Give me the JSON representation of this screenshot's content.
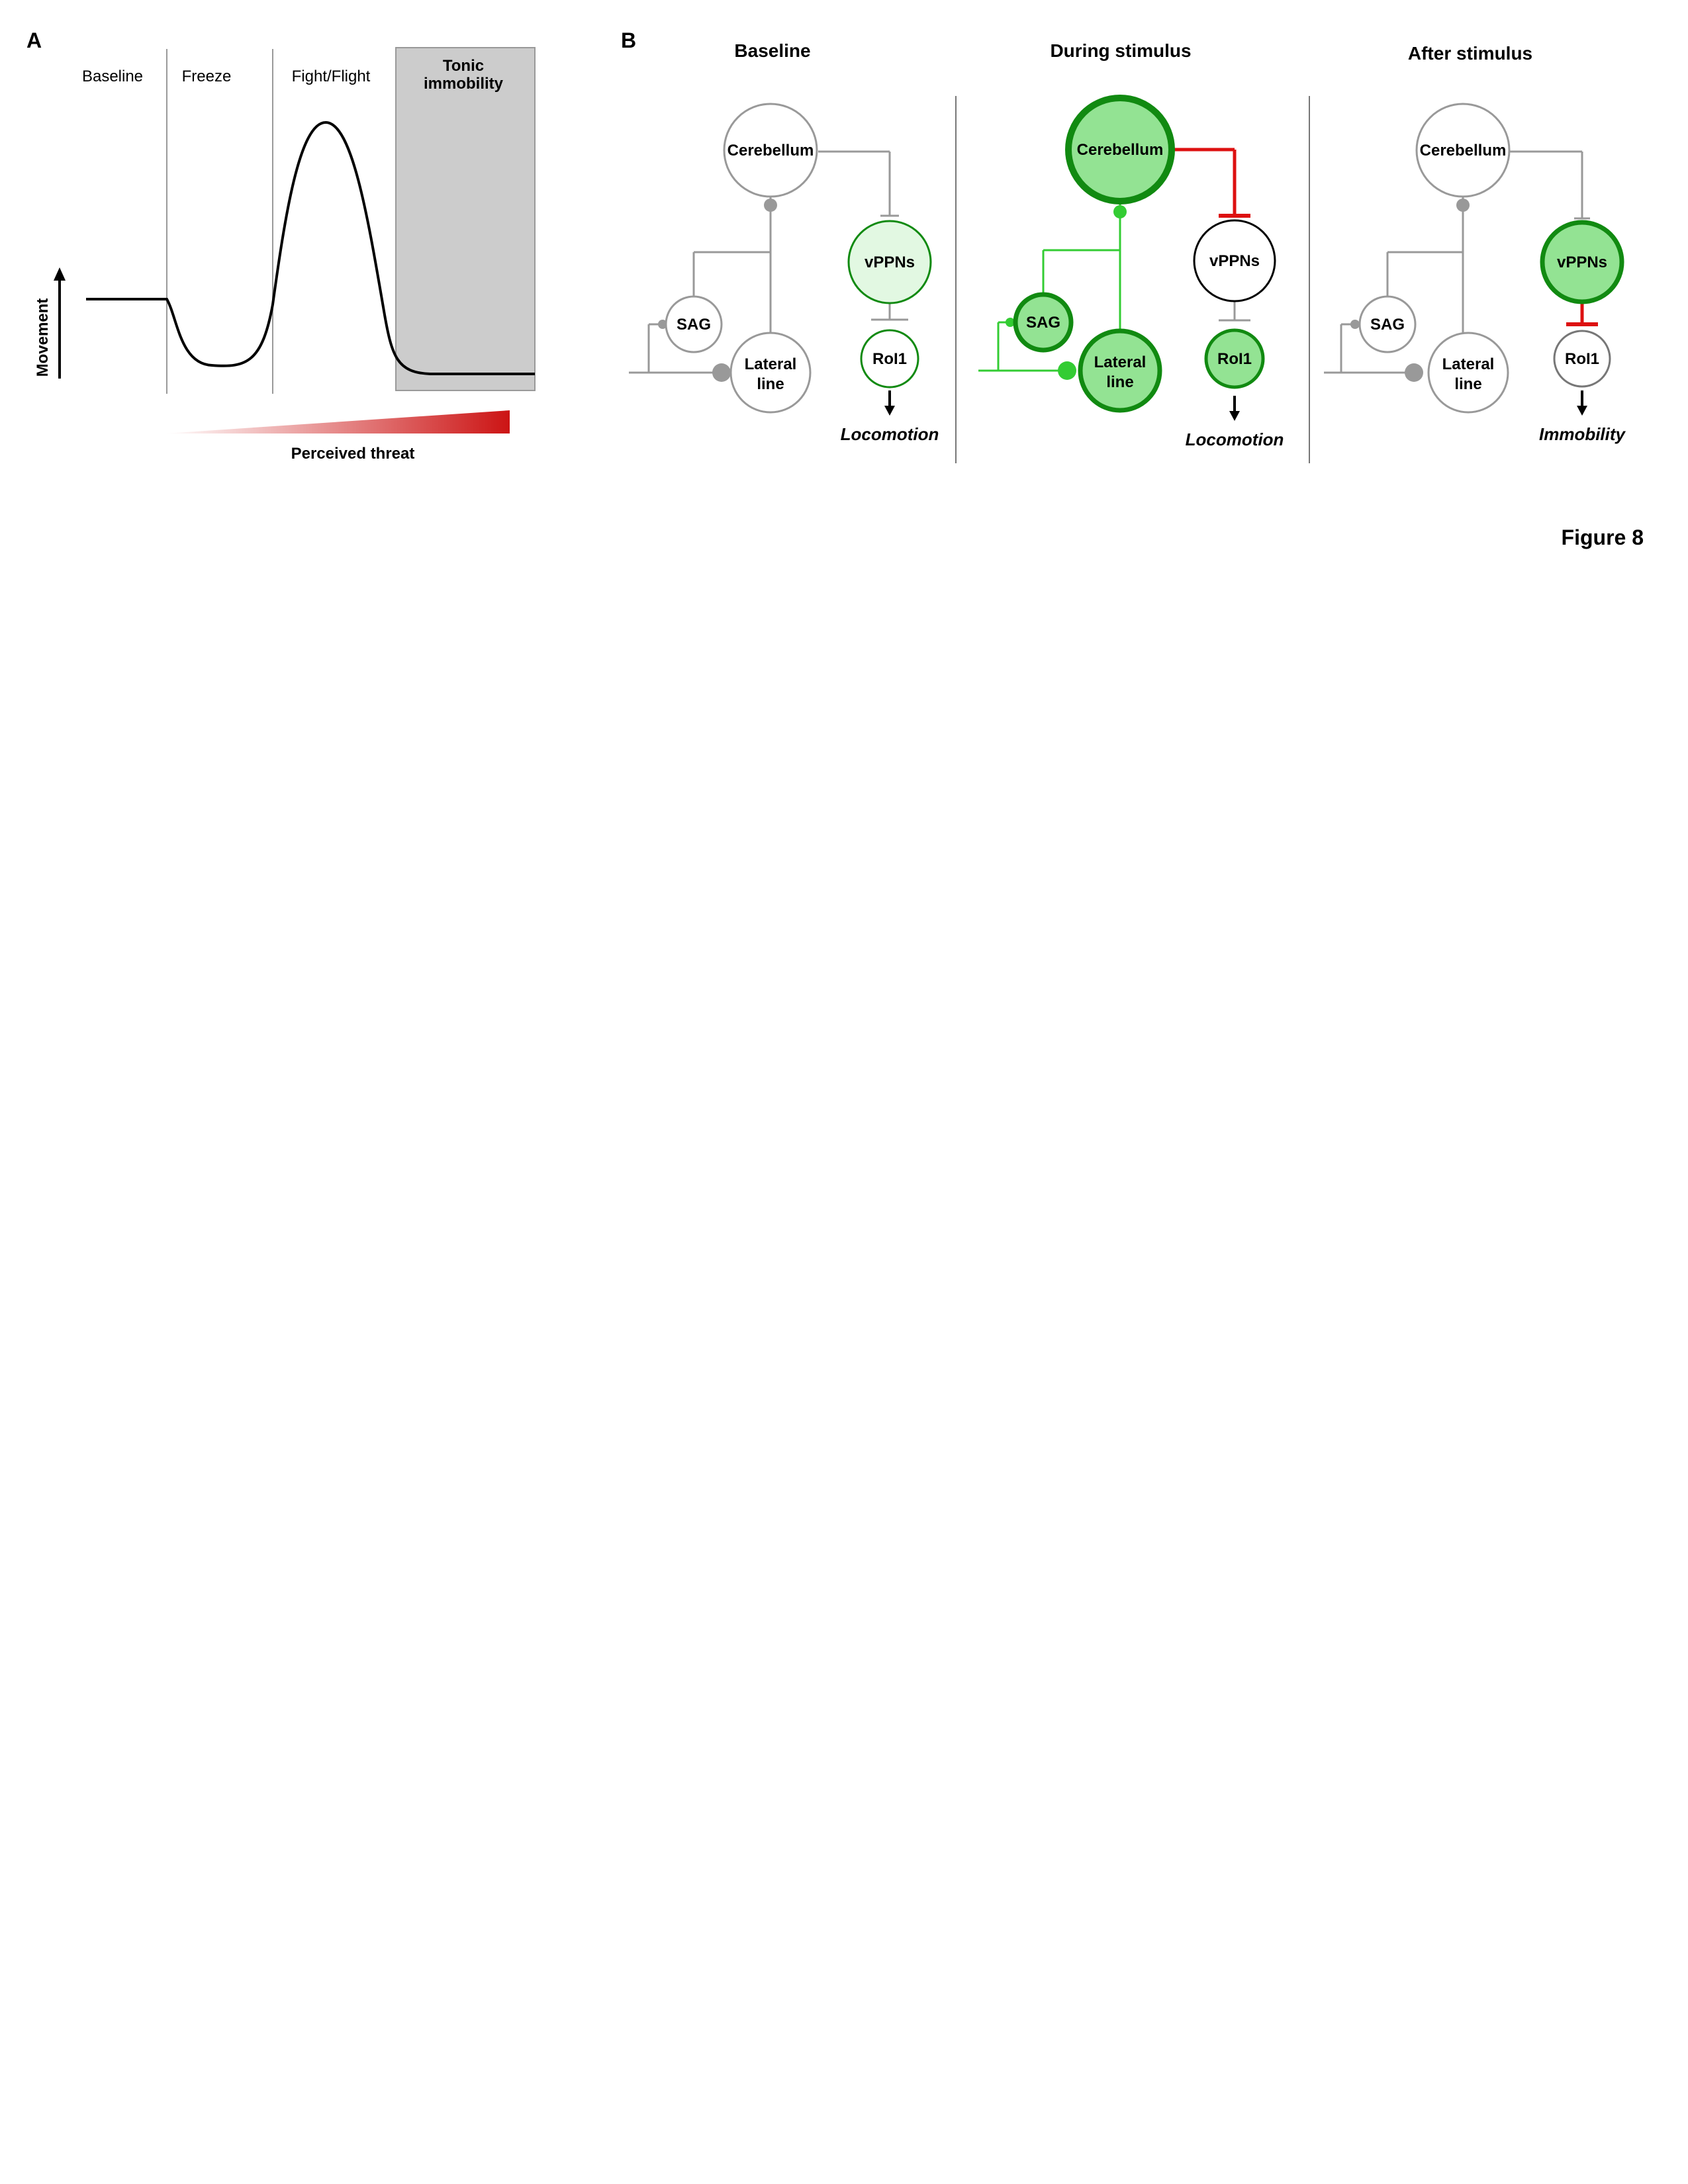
{
  "panels": {
    "a": {
      "letter": "A",
      "phases": [
        "Baseline",
        "Freeze",
        "Fight/Flight"
      ],
      "tonic": [
        "Tonic",
        "immobility"
      ],
      "y_axis": "Movement",
      "threat_label": "Perceived threat"
    },
    "b": {
      "letter": "B",
      "columns": [
        {
          "title": "Baseline",
          "nodes": {
            "cerebellum": "Cerebellum",
            "sag": "SAG",
            "lateral_line": [
              "Lateral",
              "line"
            ],
            "vppns": "vPPNs",
            "rol1": "RoI1"
          },
          "output": "Locomotion"
        },
        {
          "title": "During stimulus",
          "nodes": {
            "cerebellum": "Cerebellum",
            "sag": "SAG",
            "lateral_line": [
              "Lateral",
              "line"
            ],
            "vppns": "vPPNs",
            "rol1": "RoI1"
          },
          "output": "Locomotion"
        },
        {
          "title": "After stimulus",
          "nodes": {
            "cerebellum": "Cerebellum",
            "sag": "SAG",
            "lateral_line": [
              "Lateral",
              "line"
            ],
            "vppns": "vPPNs",
            "rol1": "RoI1"
          },
          "output": "Immobility"
        }
      ]
    }
  },
  "figure_label": "Figure 8",
  "colors": {
    "gray": "#999999",
    "green_fill": "#93e393",
    "light_green_fill": "#e2f8e2",
    "dark_green": "#118a11",
    "bright_green": "#33cc33",
    "inhibition_red": "#dd1111",
    "tonic_shade": "#cccccc",
    "threat_red": "#cc1414"
  }
}
